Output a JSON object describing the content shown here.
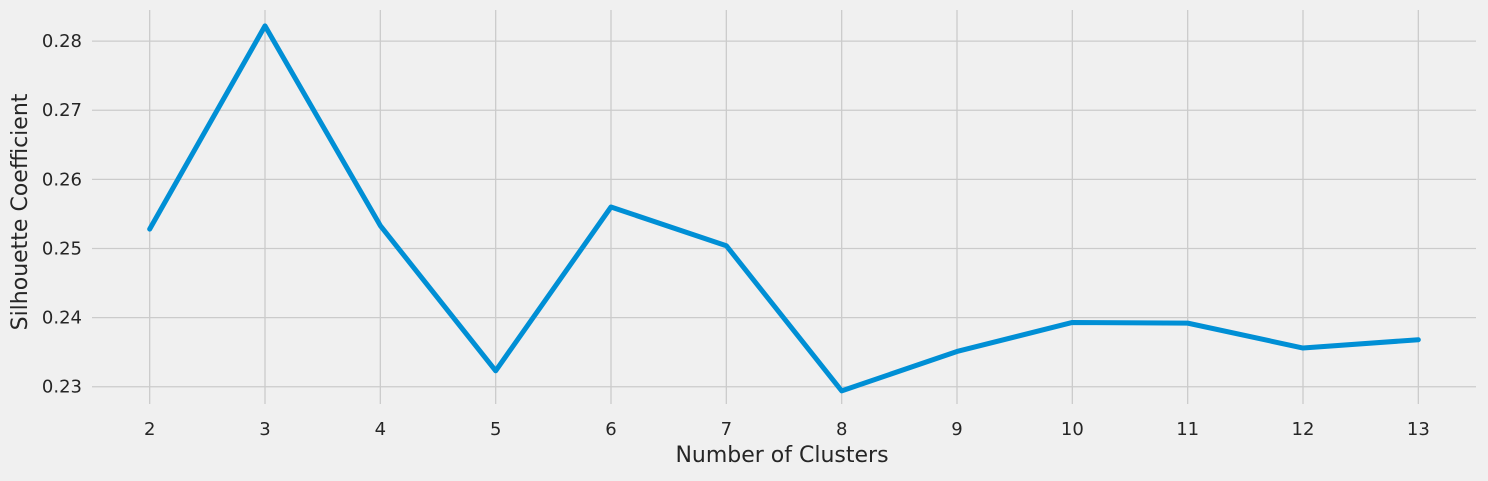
{
  "chart_data": {
    "type": "line",
    "title": "",
    "xlabel": "Number of Clusters",
    "ylabel": "Silhouette Coefficient",
    "x": [
      2,
      3,
      4,
      5,
      6,
      7,
      8,
      9,
      10,
      11,
      12,
      13
    ],
    "x_ticks": [
      "2",
      "3",
      "4",
      "5",
      "6",
      "7",
      "8",
      "9",
      "10",
      "11",
      "12",
      "13"
    ],
    "xlim": [
      1.5,
      13.5
    ],
    "y_ticks": [
      "0.23",
      "0.24",
      "0.25",
      "0.26",
      "0.27",
      "0.28"
    ],
    "ylim": [
      0.2275,
      0.2845
    ],
    "grid": true,
    "series": [
      {
        "color": "#008fd5",
        "values": [
          0.2528,
          0.2822,
          0.2533,
          0.2323,
          0.256,
          0.2504,
          0.2294,
          0.2351,
          0.2393,
          0.2392,
          0.2356,
          0.2368
        ]
      }
    ]
  }
}
